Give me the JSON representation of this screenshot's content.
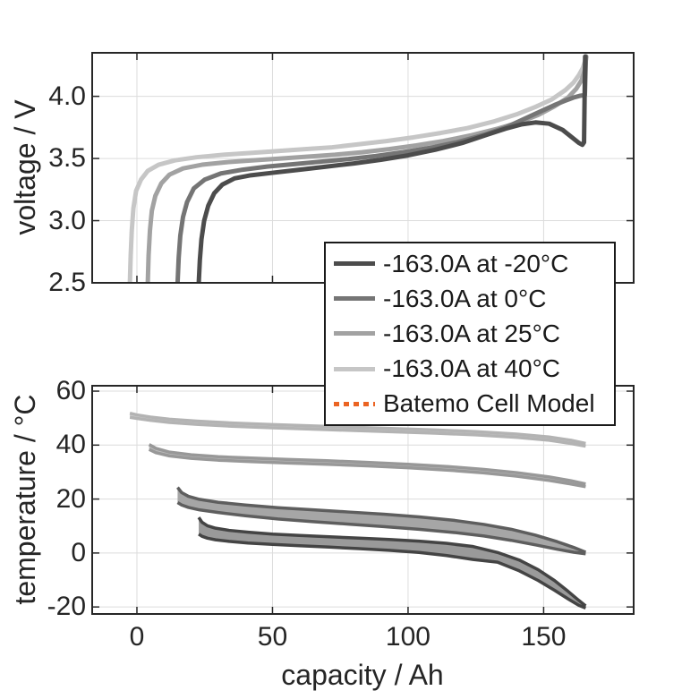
{
  "figure": {
    "background": "#ffffff",
    "axis_color": "#262626",
    "grid_color": "#dcdcdc",
    "text_color": "#252525"
  },
  "legend": {
    "position": "between-plots-right",
    "entries": [
      {
        "label": "-163.0A at -20°C",
        "color": "#4c4c4c",
        "style": "solid"
      },
      {
        "label": "-163.0A at 0°C",
        "color": "#757575",
        "style": "solid"
      },
      {
        "label": "-163.0A at 25°C",
        "color": "#a2a2a2",
        "style": "solid"
      },
      {
        "label": "-163.0A at 40°C",
        "color": "#c6c6c6",
        "style": "solid"
      },
      {
        "label": "Batemo Cell Model",
        "color": "#eb6423",
        "style": "dotted"
      }
    ]
  },
  "chart_data": [
    {
      "type": "line",
      "title": "",
      "xlabel": "",
      "ylabel": "voltage / V",
      "xlim": [
        -16.5,
        183.2
      ],
      "ylim": [
        2.5,
        4.35
      ],
      "xticks": [
        0,
        50,
        100,
        150
      ],
      "xtick_labels": [],
      "yticks": [
        2.5,
        3.0,
        3.5,
        4.0
      ],
      "ytick_labels": [
        "2.5",
        "3.0",
        "3.5",
        "4.0"
      ],
      "grid": true,
      "series": [
        {
          "name": "-163.0A at 40°C",
          "color": "#c6c6c6",
          "points": [
            [
              -2.6,
              2.5
            ],
            [
              -2.3,
              2.72
            ],
            [
              -1.9,
              2.92
            ],
            [
              -1.3,
              3.1
            ],
            [
              -0.3,
              3.24
            ],
            [
              1.5,
              3.33
            ],
            [
              4,
              3.4
            ],
            [
              8,
              3.45
            ],
            [
              14,
              3.485
            ],
            [
              22,
              3.51
            ],
            [
              32,
              3.53
            ],
            [
              42,
              3.545
            ],
            [
              52,
              3.56
            ],
            [
              62,
              3.575
            ],
            [
              72,
              3.59
            ],
            [
              82,
              3.615
            ],
            [
              92,
              3.64
            ],
            [
              102,
              3.67
            ],
            [
              112,
              3.705
            ],
            [
              122,
              3.745
            ],
            [
              132,
              3.8
            ],
            [
              140,
              3.855
            ],
            [
              147,
              3.915
            ],
            [
              153,
              3.975
            ],
            [
              158,
              4.05
            ],
            [
              161,
              4.11
            ],
            [
              163,
              4.17
            ],
            [
              164.5,
              4.23
            ],
            [
              165.3,
              4.285
            ],
            [
              165.7,
              4.32
            ]
          ]
        },
        {
          "name": "-163.0A at 25°C",
          "color": "#a2a2a2",
          "points": [
            [
              4.0,
              2.5
            ],
            [
              4.3,
              2.72
            ],
            [
              4.8,
              2.92
            ],
            [
              5.5,
              3.08
            ],
            [
              6.8,
              3.2
            ],
            [
              9,
              3.3
            ],
            [
              12,
              3.37
            ],
            [
              17,
              3.42
            ],
            [
              24,
              3.45
            ],
            [
              33,
              3.47
            ],
            [
              43,
              3.485
            ],
            [
              53,
              3.5
            ],
            [
              63,
              3.515
            ],
            [
              73,
              3.53
            ],
            [
              83,
              3.55
            ],
            [
              93,
              3.575
            ],
            [
              103,
              3.605
            ],
            [
              113,
              3.64
            ],
            [
              123,
              3.685
            ],
            [
              133,
              3.74
            ],
            [
              141,
              3.79
            ],
            [
              148,
              3.85
            ],
            [
              154,
              3.92
            ],
            [
              159,
              3.99
            ],
            [
              162,
              4.06
            ],
            [
              164,
              4.13
            ],
            [
              165.2,
              4.21
            ],
            [
              165.7,
              4.32
            ]
          ]
        },
        {
          "name": "-163.0A at 0°C",
          "color": "#757575",
          "points": [
            [
              15.0,
              2.5
            ],
            [
              15.4,
              2.7
            ],
            [
              16.0,
              2.88
            ],
            [
              17,
              3.03
            ],
            [
              18.5,
              3.15
            ],
            [
              21,
              3.26
            ],
            [
              25,
              3.33
            ],
            [
              31,
              3.38
            ],
            [
              39,
              3.41
            ],
            [
              48,
              3.435
            ],
            [
              58,
              3.455
            ],
            [
              68,
              3.475
            ],
            [
              78,
              3.495
            ],
            [
              88,
              3.52
            ],
            [
              98,
              3.55
            ],
            [
              108,
              3.585
            ],
            [
              118,
              3.63
            ],
            [
              128,
              3.69
            ],
            [
              136,
              3.75
            ],
            [
              143,
              3.82
            ],
            [
              149,
              3.88
            ],
            [
              154,
              3.93
            ],
            [
              158,
              3.965
            ],
            [
              161,
              3.99
            ],
            [
              163.5,
              4.005
            ],
            [
              165.2,
              4.01
            ],
            [
              165.6,
              4.32
            ]
          ]
        },
        {
          "name": "-163.0A at -20°C",
          "color": "#4c4c4c",
          "points": [
            [
              22.8,
              2.5
            ],
            [
              23.2,
              2.68
            ],
            [
              23.8,
              2.85
            ],
            [
              24.8,
              3.0
            ],
            [
              26.3,
              3.12
            ],
            [
              28.5,
              3.22
            ],
            [
              31.5,
              3.29
            ],
            [
              36,
              3.34
            ],
            [
              42,
              3.365
            ],
            [
              50,
              3.385
            ],
            [
              60,
              3.41
            ],
            [
              70,
              3.435
            ],
            [
              80,
              3.46
            ],
            [
              90,
              3.49
            ],
            [
              100,
              3.525
            ],
            [
              110,
              3.57
            ],
            [
              120,
              3.625
            ],
            [
              129,
              3.69
            ],
            [
              136,
              3.74
            ],
            [
              142,
              3.775
            ],
            [
              147,
              3.79
            ],
            [
              152,
              3.78
            ],
            [
              157,
              3.73
            ],
            [
              161,
              3.66
            ],
            [
              163,
              3.625
            ],
            [
              164.3,
              3.61
            ],
            [
              164.9,
              3.63
            ],
            [
              165.3,
              4.32
            ]
          ]
        }
      ]
    },
    {
      "type": "band",
      "title": "",
      "xlabel": "capacity / Ah",
      "ylabel": "temperature / °C",
      "xlim": [
        -16.5,
        183.2
      ],
      "ylim": [
        -22.6,
        62.0
      ],
      "xticks": [
        0,
        50,
        100,
        150
      ],
      "xtick_labels": [
        "0",
        "50",
        "100",
        "150"
      ],
      "yticks": [
        -20,
        0,
        20,
        40,
        60
      ],
      "ytick_labels": [
        "-20",
        "0",
        "20",
        "40",
        "60"
      ],
      "grid": true,
      "series": [
        {
          "name": "-163.0A at 40°C",
          "edge": "#b3b3b3",
          "fill": "#d2d2d2",
          "x": [
            -2.6,
            0,
            5,
            12,
            22,
            35,
            50,
            65,
            80,
            95,
            110,
            125,
            140,
            152,
            160,
            165.5
          ],
          "upper": [
            51.8,
            51.2,
            50.4,
            49.6,
            48.9,
            48.2,
            47.6,
            47.1,
            46.6,
            46.1,
            45.6,
            45.0,
            44.1,
            43.0,
            41.8,
            40.6
          ],
          "lower": [
            50.3,
            49.9,
            49.2,
            48.4,
            47.7,
            47.0,
            46.4,
            45.9,
            45.4,
            44.9,
            44.4,
            43.8,
            42.9,
            41.8,
            40.6,
            39.6
          ]
        },
        {
          "name": "-163.0A at 25°C",
          "edge": "#989898",
          "fill": "#bdbdbd",
          "x": [
            4.5,
            7,
            12,
            20,
            30,
            42,
            55,
            70,
            85,
            100,
            115,
            128,
            140,
            152,
            160,
            165.5
          ],
          "upper": [
            40.2,
            38.8,
            37.4,
            36.4,
            35.7,
            35.2,
            34.7,
            34.2,
            33.6,
            32.9,
            32.0,
            31.0,
            29.8,
            28.2,
            26.8,
            25.6
          ],
          "lower": [
            38.4,
            37.2,
            36.0,
            35.1,
            34.4,
            33.9,
            33.4,
            32.9,
            32.3,
            31.6,
            30.7,
            29.7,
            28.5,
            26.9,
            25.6,
            24.6
          ]
        },
        {
          "name": "-163.0A at 0°C",
          "edge": "#5e5e5e",
          "fill": "#a6a6a6",
          "x": [
            15,
            16.5,
            19,
            23,
            30,
            40,
            52,
            65,
            78,
            91,
            104,
            117,
            128,
            138,
            147,
            155,
            161,
            165.5
          ],
          "upper": [
            24.3,
            22.4,
            21.0,
            19.9,
            18.8,
            17.8,
            16.8,
            16.0,
            15.2,
            14.4,
            13.4,
            12.1,
            10.6,
            8.8,
            6.6,
            4.2,
            2.1,
            0.3
          ],
          "lower": [
            18.7,
            17.8,
            16.9,
            16.0,
            15.0,
            13.8,
            12.6,
            11.6,
            10.7,
            9.8,
            8.8,
            7.6,
            6.3,
            4.7,
            3.0,
            1.4,
            0.3,
            -0.3
          ]
        },
        {
          "name": "-163.0A at -20°C",
          "edge": "#444444",
          "fill": "#9a9a9a",
          "x": [
            22.8,
            24,
            26,
            29,
            34,
            41,
            50,
            60,
            71,
            82,
            93,
            104,
            114,
            124,
            133,
            141,
            148,
            154,
            159,
            163,
            165.5
          ],
          "upper": [
            13.2,
            11.4,
            10.1,
            9.2,
            8.4,
            7.7,
            7.0,
            6.5,
            6.0,
            5.5,
            5.0,
            4.4,
            3.6,
            2.4,
            0.2,
            -2.6,
            -6.2,
            -10.2,
            -14.2,
            -17.6,
            -19.6
          ],
          "lower": [
            7.0,
            6.2,
            5.5,
            4.9,
            4.3,
            3.7,
            3.2,
            2.7,
            2.2,
            1.6,
            1.0,
            0.2,
            -0.9,
            -2.4,
            -3.4,
            -6.6,
            -10.2,
            -13.8,
            -17.0,
            -19.4,
            -20.4
          ]
        }
      ]
    }
  ]
}
